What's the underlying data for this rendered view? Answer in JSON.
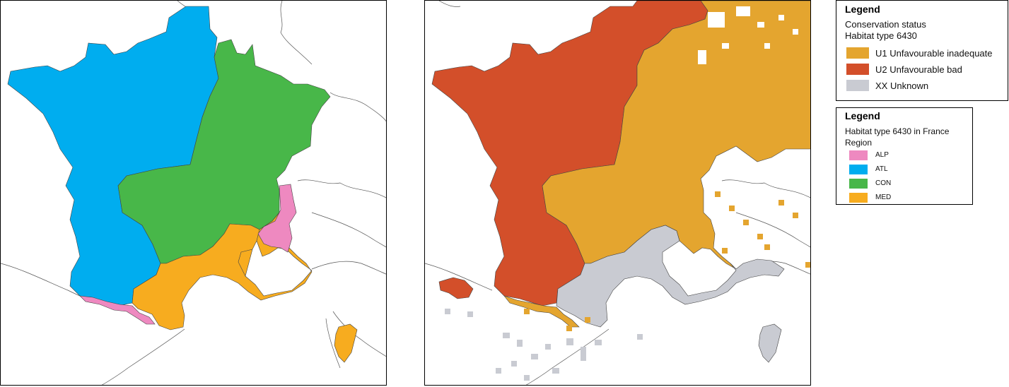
{
  "colors": {
    "alp": "#ee89c0",
    "atl": "#00adef",
    "con": "#48b749",
    "med": "#f7ac1f",
    "u1": "#e4a52f",
    "u2": "#d34f2a",
    "xx": "#c9cbd2",
    "border": "#444444"
  },
  "legend_status": {
    "title": "Legend",
    "line1": "Conservation status",
    "line2": "Habitat type 6430",
    "items": [
      {
        "label": "U1 Unfavourable inadequate",
        "color_key": "u1"
      },
      {
        "label": "U2 Unfavourable bad",
        "color_key": "u2"
      },
      {
        "label": "XX Unknown",
        "color_key": "xx"
      }
    ]
  },
  "legend_region": {
    "title": "Legend",
    "line1": "Habitat type 6430 in France",
    "line2": "Region",
    "items": [
      {
        "label": "ALP",
        "color_key": "alp"
      },
      {
        "label": "ATL",
        "color_key": "atl"
      },
      {
        "label": "CON",
        "color_key": "con"
      },
      {
        "label": "MED",
        "color_key": "med"
      }
    ]
  }
}
